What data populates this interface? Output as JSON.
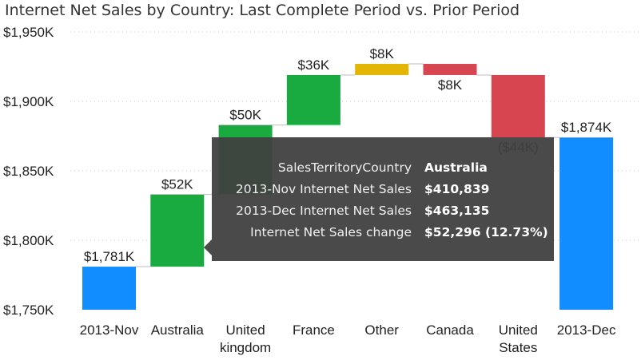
{
  "chart_data": {
    "type": "waterfall",
    "title": "Internet Net Sales by Country: Last Complete Period vs. Prior Period",
    "ylim": [
      1750,
      1950
    ],
    "yticks": [
      {
        "value": 1750,
        "label": "$1,750K"
      },
      {
        "value": 1800,
        "label": "$1,800K"
      },
      {
        "value": 1850,
        "label": "$1,850K"
      },
      {
        "value": 1900,
        "label": "$1,900K"
      },
      {
        "value": 1950,
        "label": "$1,950K"
      }
    ],
    "grid": true,
    "bars": [
      {
        "category": "2013-Nov",
        "lines": [
          "2013-Nov"
        ],
        "kind": "total",
        "start": 1750,
        "end": 1781,
        "label": "$1,781K",
        "color": "#118dff"
      },
      {
        "category": "Australia",
        "lines": [
          "Australia"
        ],
        "kind": "increase",
        "start": 1781,
        "end": 1833,
        "label": "$52K",
        "color": "#1aab40"
      },
      {
        "category": "United kingdom",
        "lines": [
          "United",
          "kingdom"
        ],
        "kind": "increase",
        "start": 1833,
        "end": 1883,
        "label": "$50K",
        "color": "#1aab40"
      },
      {
        "category": "France",
        "lines": [
          "France"
        ],
        "kind": "increase",
        "start": 1883,
        "end": 1919,
        "label": "$36K",
        "color": "#1aab40"
      },
      {
        "category": "Other",
        "lines": [
          "Other"
        ],
        "kind": "increase",
        "start": 1919,
        "end": 1927,
        "label": "$8K",
        "color": "#e3b505"
      },
      {
        "category": "Canada",
        "lines": [
          "Canada"
        ],
        "kind": "decrease",
        "start": 1927,
        "end": 1919,
        "label": "$8K",
        "color": "#d64550"
      },
      {
        "category": "United States",
        "lines": [
          "United",
          "States"
        ],
        "kind": "decrease",
        "start": 1919,
        "end": 1874,
        "label": "($44K)",
        "color": "#d64550"
      },
      {
        "category": "2013-Dec",
        "lines": [
          "2013-Dec"
        ],
        "kind": "total",
        "start": 1750,
        "end": 1874,
        "label": "$1,874K",
        "color": "#118dff"
      }
    ]
  },
  "tooltip": {
    "rows": [
      {
        "key": "SalesTerritoryCountry",
        "value": "Australia"
      },
      {
        "key": "2013-Nov Internet Net Sales",
        "value": "$410,839"
      },
      {
        "key": "2013-Dec Internet Net Sales",
        "value": "$463,135"
      },
      {
        "key": "Internet Net Sales change",
        "value": "$52,296 (12.73%)"
      }
    ]
  }
}
